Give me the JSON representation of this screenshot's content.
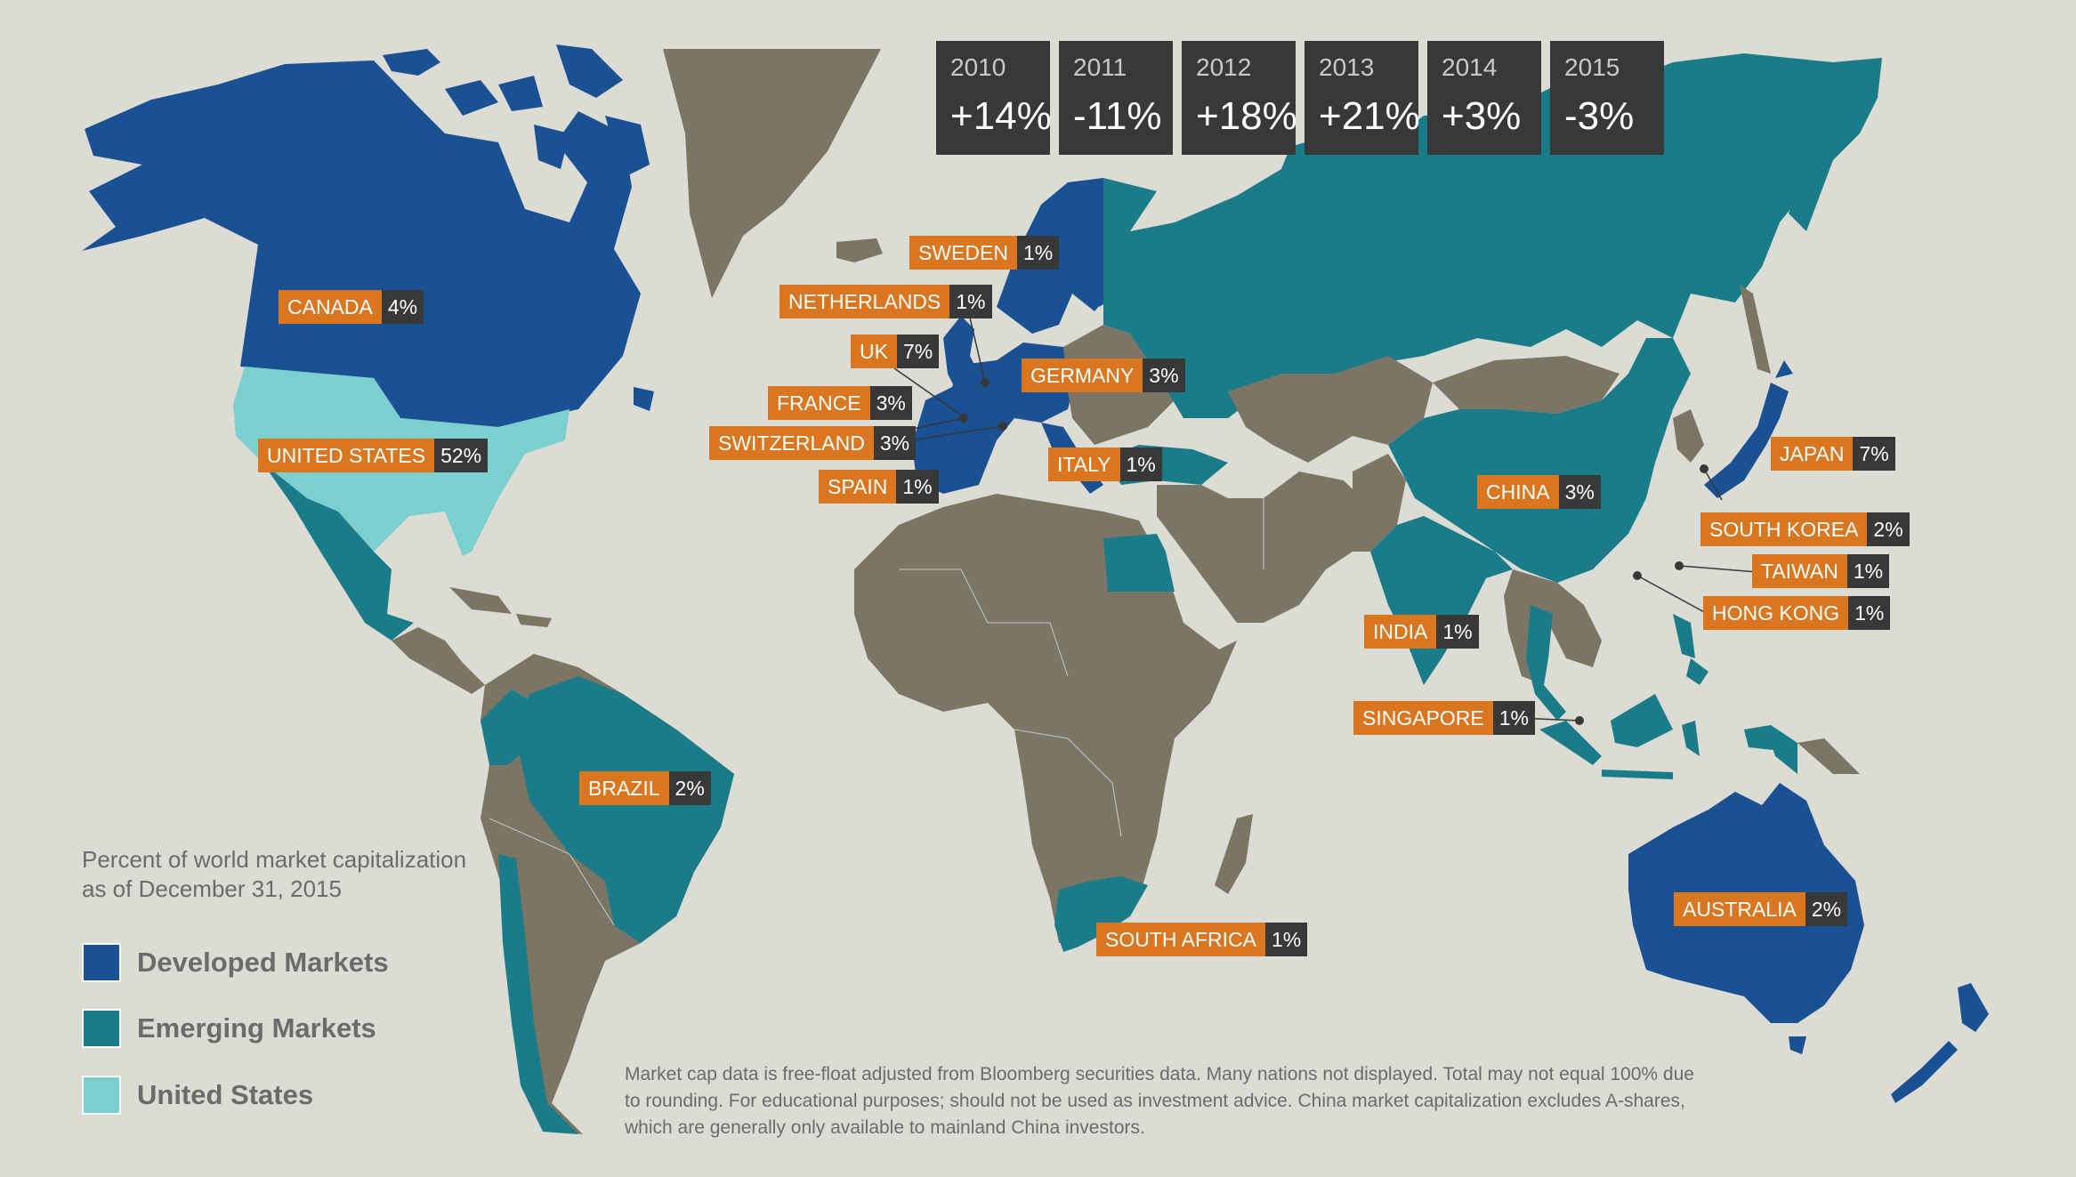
{
  "colors": {
    "background": "#dcdcd4",
    "developed": "#1a5193",
    "emerging": "#1b7c89",
    "united_states": "#7ccfcf",
    "other": "#7a7565",
    "label_name": "#d9761f",
    "label_value": "#383838"
  },
  "years": [
    {
      "year": "2010",
      "value": "+14%"
    },
    {
      "year": "2011",
      "value": "-11%"
    },
    {
      "year": "2012",
      "value": "+18%"
    },
    {
      "year": "2013",
      "value": "+21%"
    },
    {
      "year": "2014",
      "value": "+3%"
    },
    {
      "year": "2015",
      "value": "-3%"
    }
  ],
  "countries": {
    "sweden": {
      "name": "SWEDEN",
      "value": "1%"
    },
    "netherlands": {
      "name": "NETHERLANDS",
      "value": "1%"
    },
    "canada": {
      "name": "CANADA",
      "value": "4%"
    },
    "uk": {
      "name": "UK",
      "value": "7%"
    },
    "germany": {
      "name": "GERMANY",
      "value": "3%"
    },
    "france": {
      "name": "FRANCE",
      "value": "3%"
    },
    "switzerland": {
      "name": "SWITZERLAND",
      "value": "3%"
    },
    "united_states": {
      "name": "UNITED STATES",
      "value": "52%"
    },
    "italy": {
      "name": "ITALY",
      "value": "1%"
    },
    "spain": {
      "name": "SPAIN",
      "value": "1%"
    },
    "japan": {
      "name": "JAPAN",
      "value": "7%"
    },
    "china": {
      "name": "CHINA",
      "value": "3%"
    },
    "south_korea": {
      "name": "SOUTH KOREA",
      "value": "2%"
    },
    "taiwan": {
      "name": "TAIWAN",
      "value": "1%"
    },
    "hong_kong": {
      "name": "HONG KONG",
      "value": "1%"
    },
    "india": {
      "name": "INDIA",
      "value": "1%"
    },
    "singapore": {
      "name": "SINGAPORE",
      "value": "1%"
    },
    "brazil": {
      "name": "BRAZIL",
      "value": "2%"
    },
    "australia": {
      "name": "AUSTRALIA",
      "value": "2%"
    },
    "south_africa": {
      "name": "SOUTH AFRICA",
      "value": "1%"
    }
  },
  "legend": {
    "title_line1": "Percent of world market capitalization",
    "title_line2": "as of December 31, 2015",
    "developed": "Developed Markets",
    "emerging": "Emerging Markets",
    "united_states": "United States"
  },
  "footnote": {
    "line1": "Market cap data is free-float adjusted from Bloomberg securities data. Many nations not displayed. Total may not equal 100% due",
    "line2": "to rounding. For educational purposes; should not be used as investment advice. China market capitalization excludes A-shares,",
    "line3": "which are generally only available to mainland China investors."
  }
}
